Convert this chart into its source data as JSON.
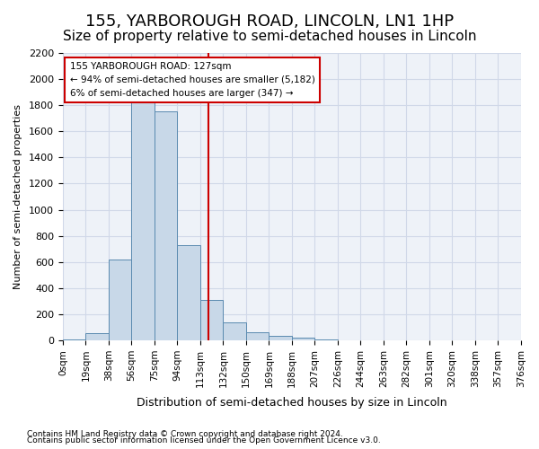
{
  "title_line1": "155, YARBOROUGH ROAD, LINCOLN, LN1 1HP",
  "title_line2": "Size of property relative to semi-detached houses in Lincoln",
  "xlabel": "Distribution of semi-detached houses by size in Lincoln",
  "ylabel": "Number of semi-detached properties",
  "footnote1": "Contains HM Land Registry data © Crown copyright and database right 2024.",
  "footnote2": "Contains public sector information licensed under the Open Government Licence v3.0.",
  "bin_labels": [
    "0sqm",
    "19sqm",
    "38sqm",
    "56sqm",
    "75sqm",
    "94sqm",
    "113sqm",
    "132sqm",
    "150sqm",
    "169sqm",
    "188sqm",
    "207sqm",
    "226sqm",
    "244sqm",
    "263sqm",
    "282sqm",
    "301sqm",
    "320sqm",
    "338sqm",
    "357sqm",
    "376sqm"
  ],
  "bar_values": [
    10,
    55,
    620,
    1830,
    1750,
    730,
    310,
    140,
    60,
    35,
    20,
    5,
    2,
    0,
    0,
    0,
    0,
    0,
    0,
    0
  ],
  "bar_color": "#c8d8e8",
  "bar_edge_color": "#5a8ab0",
  "property_line_x": 6.36,
  "property_sqm": 127,
  "annotation_text_line1": "155 YARBOROUGH ROAD: 127sqm",
  "annotation_text_line2": "← 94% of semi-detached houses are smaller (5,182)",
  "annotation_text_line3": "6% of semi-detached houses are larger (347) →",
  "annotation_box_color": "#ffffff",
  "annotation_box_edge": "#cc0000",
  "vline_color": "#cc0000",
  "ylim": [
    0,
    2200
  ],
  "yticks": [
    0,
    200,
    400,
    600,
    800,
    1000,
    1200,
    1400,
    1600,
    1800,
    2000,
    2200
  ],
  "grid_color": "#d0d8e8",
  "bg_color": "#eef2f8",
  "title_fontsize": 13,
  "subtitle_fontsize": 11
}
